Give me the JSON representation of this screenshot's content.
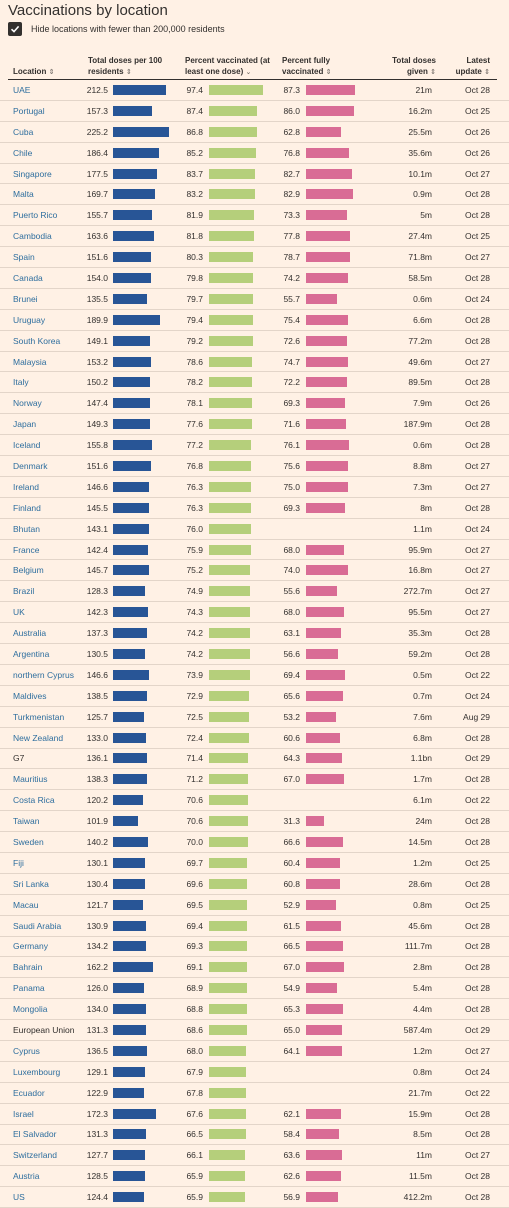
{
  "title": "Vaccinations by location",
  "filter": {
    "label": "Hide locations with fewer than 200,000 residents",
    "checked": true
  },
  "columns": {
    "location": "Location",
    "doses": "Total doses per 100 residents",
    "vaccinated": "Percent vaccinated (at least one dose)",
    "fully": "Percent fully vaccinated",
    "total": "Total doses given",
    "update": "Latest update"
  },
  "colors": {
    "doses": "#285596",
    "vaccinated": "#b5cf7b",
    "fully": "#d96c95"
  },
  "rows": [
    {
      "location": "UAE",
      "doses": "212.5",
      "vaccinated": "97.4",
      "fully": "87.3",
      "total": "21m",
      "update": "Oct 28"
    },
    {
      "location": "Portugal",
      "doses": "157.3",
      "vaccinated": "87.4",
      "fully": "86.0",
      "total": "16.2m",
      "update": "Oct 25"
    },
    {
      "location": "Cuba",
      "doses": "225.2",
      "vaccinated": "86.8",
      "fully": "62.8",
      "total": "25.5m",
      "update": "Oct 26"
    },
    {
      "location": "Chile",
      "doses": "186.4",
      "vaccinated": "85.2",
      "fully": "76.8",
      "total": "35.6m",
      "update": "Oct 26"
    },
    {
      "location": "Singapore",
      "doses": "177.5",
      "vaccinated": "83.7",
      "fully": "82.7",
      "total": "10.1m",
      "update": "Oct 27"
    },
    {
      "location": "Malta",
      "doses": "169.7",
      "vaccinated": "83.2",
      "fully": "82.9",
      "total": "0.9m",
      "update": "Oct 28"
    },
    {
      "location": "Puerto Rico",
      "doses": "155.7",
      "vaccinated": "81.9",
      "fully": "73.3",
      "total": "5m",
      "update": "Oct 28"
    },
    {
      "location": "Cambodia",
      "doses": "163.6",
      "vaccinated": "81.8",
      "fully": "77.8",
      "total": "27.4m",
      "update": "Oct 25"
    },
    {
      "location": "Spain",
      "doses": "151.6",
      "vaccinated": "80.3",
      "fully": "78.7",
      "total": "71.8m",
      "update": "Oct 27"
    },
    {
      "location": "Canada",
      "doses": "154.0",
      "vaccinated": "79.8",
      "fully": "74.2",
      "total": "58.5m",
      "update": "Oct 28"
    },
    {
      "location": "Brunei",
      "doses": "135.5",
      "vaccinated": "79.7",
      "fully": "55.7",
      "total": "0.6m",
      "update": "Oct 24"
    },
    {
      "location": "Uruguay",
      "doses": "189.9",
      "vaccinated": "79.4",
      "fully": "75.4",
      "total": "6.6m",
      "update": "Oct 28"
    },
    {
      "location": "South Korea",
      "doses": "149.1",
      "vaccinated": "79.2",
      "fully": "72.6",
      "total": "77.2m",
      "update": "Oct 28"
    },
    {
      "location": "Malaysia",
      "doses": "153.2",
      "vaccinated": "78.6",
      "fully": "74.7",
      "total": "49.6m",
      "update": "Oct 27"
    },
    {
      "location": "Italy",
      "doses": "150.2",
      "vaccinated": "78.2",
      "fully": "72.2",
      "total": "89.5m",
      "update": "Oct 28"
    },
    {
      "location": "Norway",
      "doses": "147.4",
      "vaccinated": "78.1",
      "fully": "69.3",
      "total": "7.9m",
      "update": "Oct 26"
    },
    {
      "location": "Japan",
      "doses": "149.3",
      "vaccinated": "77.6",
      "fully": "71.6",
      "total": "187.9m",
      "update": "Oct 28"
    },
    {
      "location": "Iceland",
      "doses": "155.8",
      "vaccinated": "77.2",
      "fully": "76.1",
      "total": "0.6m",
      "update": "Oct 28"
    },
    {
      "location": "Denmark",
      "doses": "151.6",
      "vaccinated": "76.8",
      "fully": "75.6",
      "total": "8.8m",
      "update": "Oct 27"
    },
    {
      "location": "Ireland",
      "doses": "146.6",
      "vaccinated": "76.3",
      "fully": "75.0",
      "total": "7.3m",
      "update": "Oct 27"
    },
    {
      "location": "Finland",
      "doses": "145.5",
      "vaccinated": "76.3",
      "fully": "69.3",
      "total": "8m",
      "update": "Oct 28"
    },
    {
      "location": "Bhutan",
      "doses": "143.1",
      "vaccinated": "76.0",
      "fully": "",
      "total": "1.1m",
      "update": "Oct 24"
    },
    {
      "location": "France",
      "doses": "142.4",
      "vaccinated": "75.9",
      "fully": "68.0",
      "total": "95.9m",
      "update": "Oct 27"
    },
    {
      "location": "Belgium",
      "doses": "145.7",
      "vaccinated": "75.2",
      "fully": "74.0",
      "total": "16.8m",
      "update": "Oct 27"
    },
    {
      "location": "Brazil",
      "doses": "128.3",
      "vaccinated": "74.9",
      "fully": "55.6",
      "total": "272.7m",
      "update": "Oct 27"
    },
    {
      "location": "UK",
      "doses": "142.3",
      "vaccinated": "74.3",
      "fully": "68.0",
      "total": "95.5m",
      "update": "Oct 27"
    },
    {
      "location": "Australia",
      "doses": "137.3",
      "vaccinated": "74.2",
      "fully": "63.1",
      "total": "35.3m",
      "update": "Oct 28"
    },
    {
      "location": "Argentina",
      "doses": "130.5",
      "vaccinated": "74.2",
      "fully": "56.6",
      "total": "59.2m",
      "update": "Oct 28"
    },
    {
      "location": "northern Cyprus",
      "doses": "146.6",
      "vaccinated": "73.9",
      "fully": "69.4",
      "total": "0.5m",
      "update": "Oct 22"
    },
    {
      "location": "Maldives",
      "doses": "138.5",
      "vaccinated": "72.9",
      "fully": "65.6",
      "total": "0.7m",
      "update": "Oct 24"
    },
    {
      "location": "Turkmenistan",
      "doses": "125.7",
      "vaccinated": "72.5",
      "fully": "53.2",
      "total": "7.6m",
      "update": "Aug 29"
    },
    {
      "location": "New Zealand",
      "doses": "133.0",
      "vaccinated": "72.4",
      "fully": "60.6",
      "total": "6.8m",
      "update": "Oct 28"
    },
    {
      "location": "G7",
      "doses": "136.1",
      "vaccinated": "71.4",
      "fully": "64.3",
      "total": "1.1bn",
      "update": "Oct 29",
      "plain": true
    },
    {
      "location": "Mauritius",
      "doses": "138.3",
      "vaccinated": "71.2",
      "fully": "67.0",
      "total": "1.7m",
      "update": "Oct 28"
    },
    {
      "location": "Costa Rica",
      "doses": "120.2",
      "vaccinated": "70.6",
      "fully": "",
      "total": "6.1m",
      "update": "Oct 22"
    },
    {
      "location": "Taiwan",
      "doses": "101.9",
      "vaccinated": "70.6",
      "fully": "31.3",
      "total": "24m",
      "update": "Oct 28"
    },
    {
      "location": "Sweden",
      "doses": "140.2",
      "vaccinated": "70.0",
      "fully": "66.6",
      "total": "14.5m",
      "update": "Oct 28"
    },
    {
      "location": "Fiji",
      "doses": "130.1",
      "vaccinated": "69.7",
      "fully": "60.4",
      "total": "1.2m",
      "update": "Oct 25"
    },
    {
      "location": "Sri Lanka",
      "doses": "130.4",
      "vaccinated": "69.6",
      "fully": "60.8",
      "total": "28.6m",
      "update": "Oct 28"
    },
    {
      "location": "Macau",
      "doses": "121.7",
      "vaccinated": "69.5",
      "fully": "52.9",
      "total": "0.8m",
      "update": "Oct 25"
    },
    {
      "location": "Saudi Arabia",
      "doses": "130.9",
      "vaccinated": "69.4",
      "fully": "61.5",
      "total": "45.6m",
      "update": "Oct 28"
    },
    {
      "location": "Germany",
      "doses": "134.2",
      "vaccinated": "69.3",
      "fully": "66.5",
      "total": "111.7m",
      "update": "Oct 28"
    },
    {
      "location": "Bahrain",
      "doses": "162.2",
      "vaccinated": "69.1",
      "fully": "67.0",
      "total": "2.8m",
      "update": "Oct 28"
    },
    {
      "location": "Panama",
      "doses": "126.0",
      "vaccinated": "68.9",
      "fully": "54.9",
      "total": "5.4m",
      "update": "Oct 28"
    },
    {
      "location": "Mongolia",
      "doses": "134.0",
      "vaccinated": "68.8",
      "fully": "65.3",
      "total": "4.4m",
      "update": "Oct 28"
    },
    {
      "location": "European Union",
      "doses": "131.3",
      "vaccinated": "68.6",
      "fully": "65.0",
      "total": "587.4m",
      "update": "Oct 29",
      "plain": true
    },
    {
      "location": "Cyprus",
      "doses": "136.5",
      "vaccinated": "68.0",
      "fully": "64.1",
      "total": "1.2m",
      "update": "Oct 27"
    },
    {
      "location": "Luxembourg",
      "doses": "129.1",
      "vaccinated": "67.9",
      "fully": "",
      "total": "0.8m",
      "update": "Oct 24"
    },
    {
      "location": "Ecuador",
      "doses": "122.9",
      "vaccinated": "67.8",
      "fully": "",
      "total": "21.7m",
      "update": "Oct 22"
    },
    {
      "location": "Israel",
      "doses": "172.3",
      "vaccinated": "67.6",
      "fully": "62.1",
      "total": "15.9m",
      "update": "Oct 28"
    },
    {
      "location": "El Salvador",
      "doses": "131.3",
      "vaccinated": "66.5",
      "fully": "58.4",
      "total": "8.5m",
      "update": "Oct 28"
    },
    {
      "location": "Switzerland",
      "doses": "127.7",
      "vaccinated": "66.1",
      "fully": "63.6",
      "total": "11m",
      "update": "Oct 27"
    },
    {
      "location": "Austria",
      "doses": "128.5",
      "vaccinated": "65.9",
      "fully": "62.6",
      "total": "11.5m",
      "update": "Oct 28"
    },
    {
      "location": "US",
      "doses": "124.4",
      "vaccinated": "65.9",
      "fully": "56.9",
      "total": "412.2m",
      "update": "Oct 28"
    }
  ]
}
